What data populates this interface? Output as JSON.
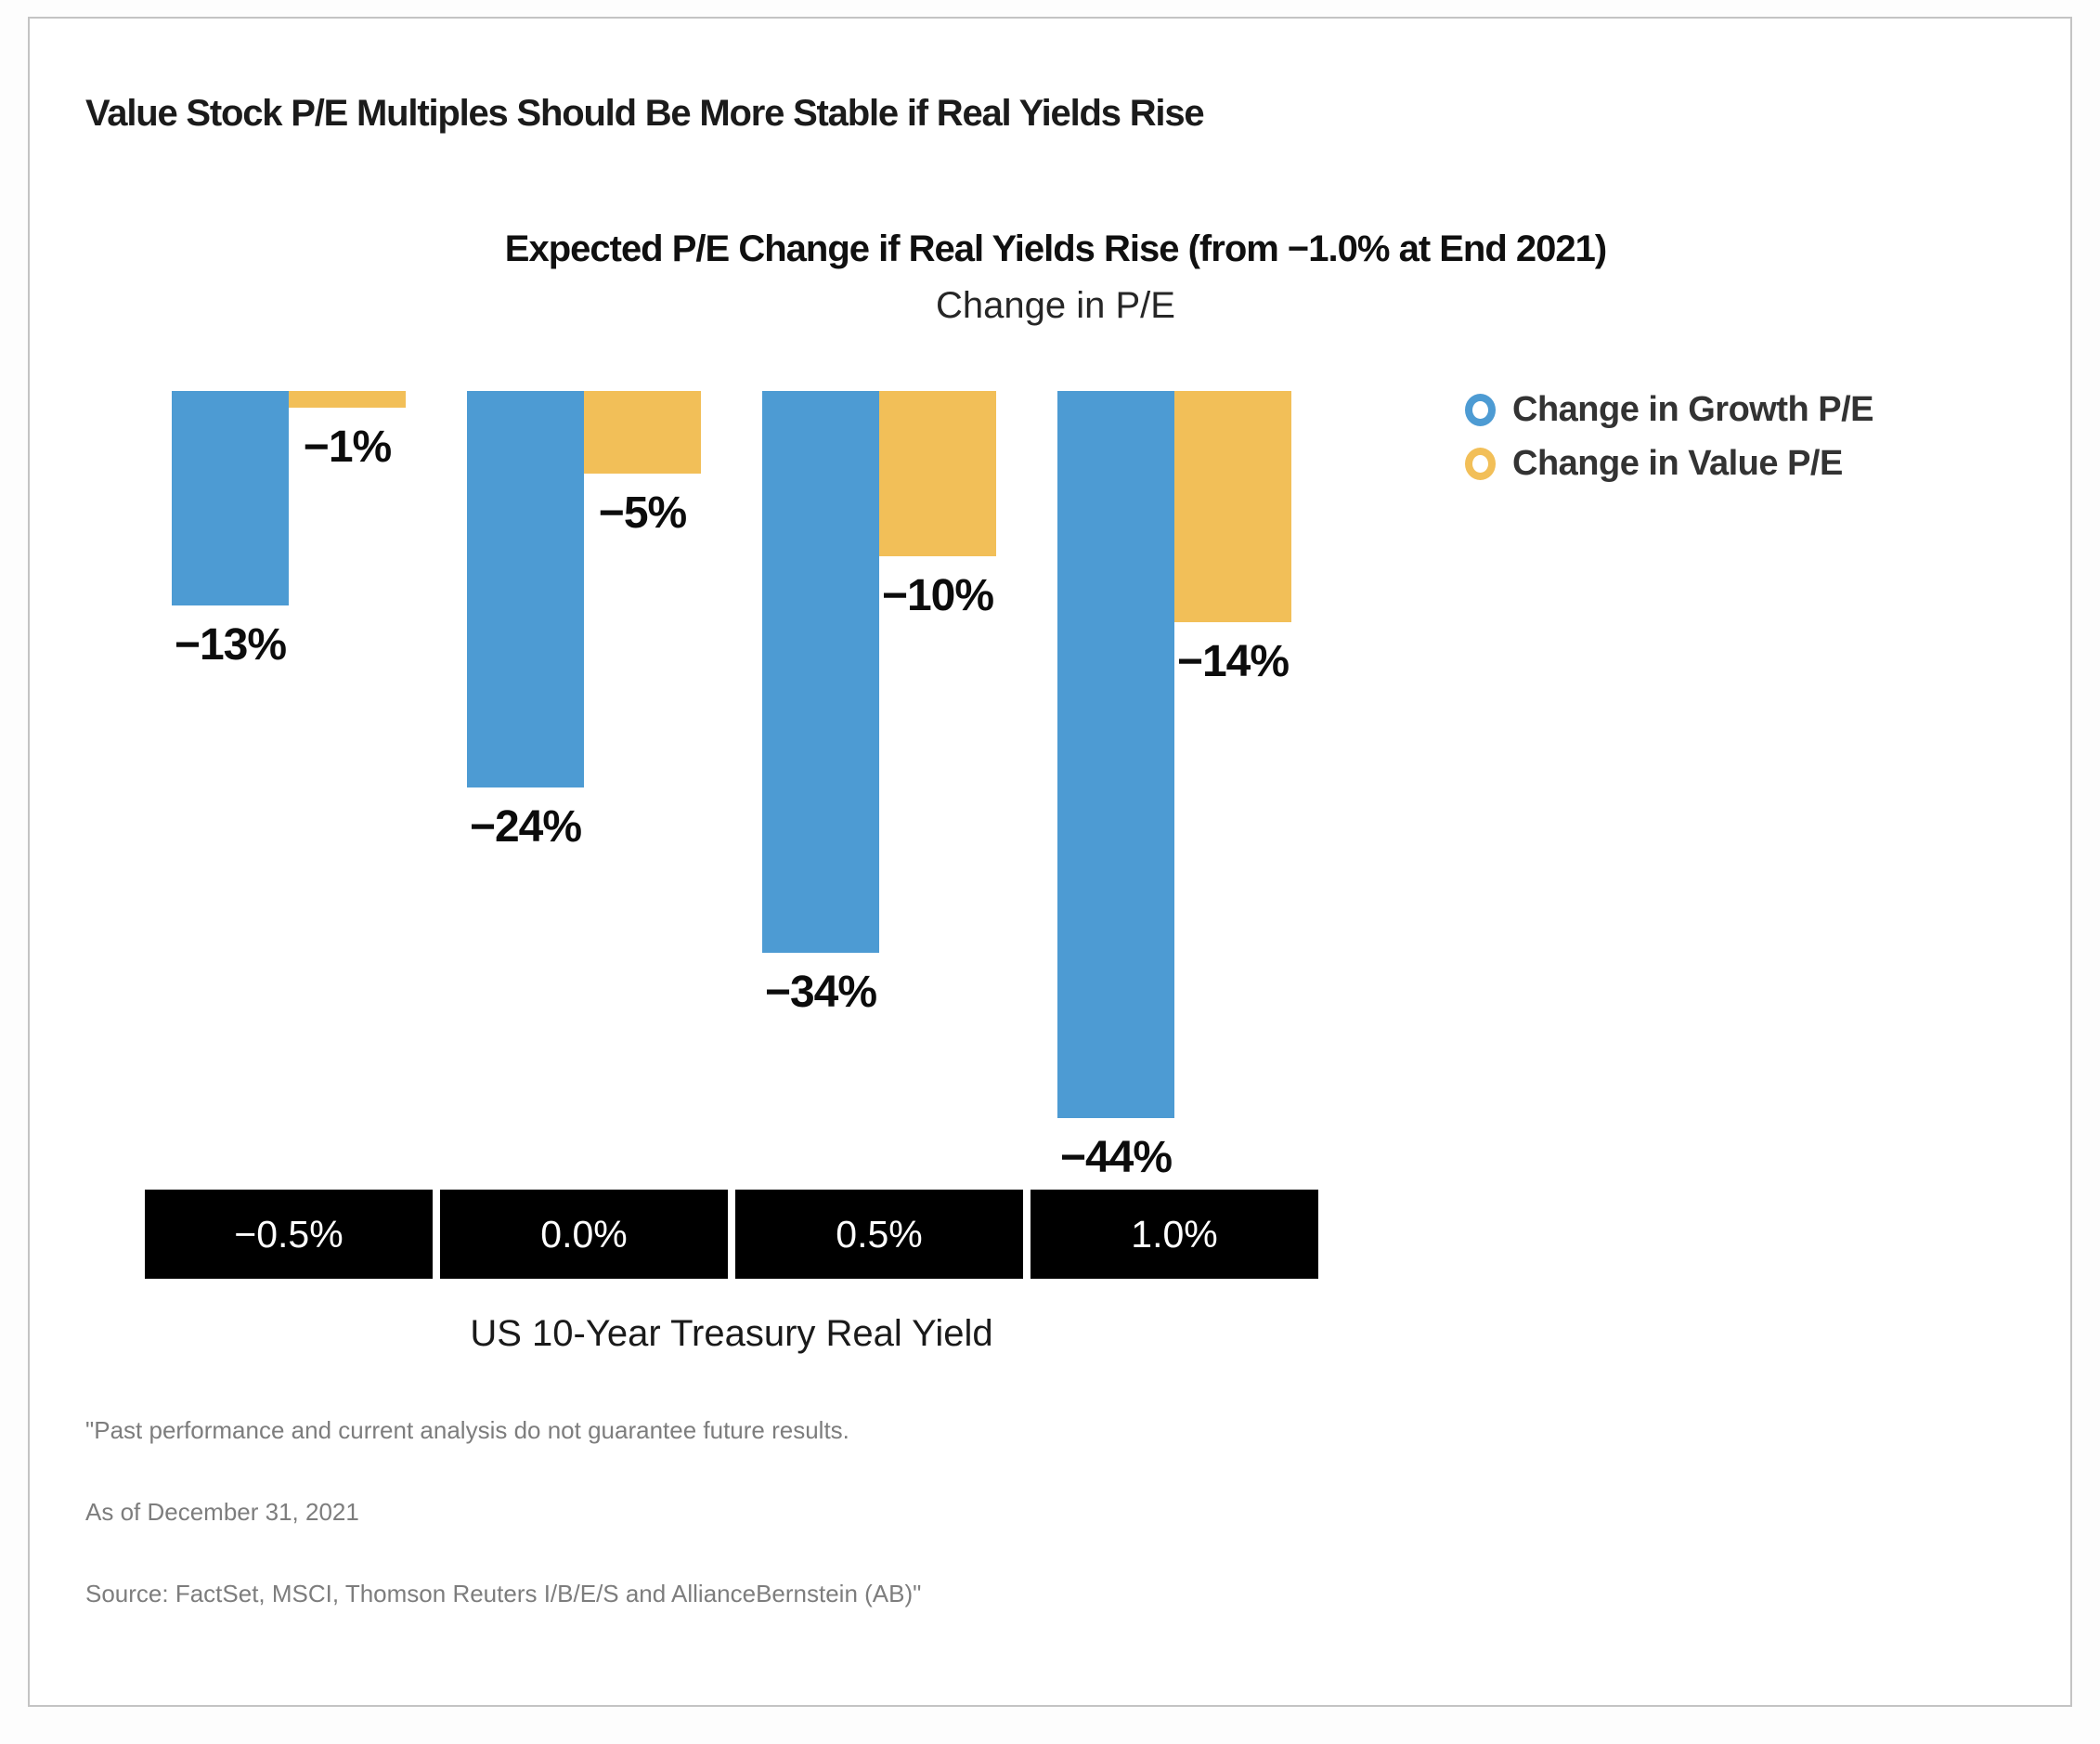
{
  "page_title": "Value Stock P/E Multiples Should Be More Stable if Real Yields Rise",
  "chart": {
    "title": "Expected P/E Change if Real Yields Rise (from −1.0% at End 2021)",
    "subtitle": "Change in P/E",
    "x_axis_title": "US 10-Year Treasury Real Yield"
  },
  "chart_data": {
    "type": "bar",
    "title": "Expected P/E Change if Real Yields Rise (from −1.0% at End 2021)",
    "subtitle": "Change in P/E",
    "xlabel": "US 10-Year Treasury Real Yield",
    "ylabel": "Change in P/E",
    "categories": [
      "−0.5%",
      "0.0%",
      "0.5%",
      "1.0%"
    ],
    "series": [
      {
        "name": "Change in Growth P/E",
        "color": "#4d9bd3",
        "values": [
          -13,
          -24,
          -34,
          -44
        ],
        "data_labels": [
          "−13%",
          "−24%",
          "−34%",
          "−44%"
        ]
      },
      {
        "name": "Change in Value P/E",
        "color": "#f2bf58",
        "values": [
          -1,
          -5,
          -10,
          -14
        ],
        "data_labels": [
          "−1%",
          "−5%",
          "−10%",
          "−14%"
        ]
      }
    ],
    "ylim": [
      -50,
      0
    ],
    "grid": false,
    "legend_position": "right",
    "category_axis_style": "black-boxes-white-text"
  },
  "colors": {
    "growth_blue": "#4d9bd3",
    "value_yellow": "#f2bf58",
    "axis_box_bg": "#000000",
    "axis_box_text": "#ffffff",
    "card_border": "#c4c4c4"
  },
  "footnotes": [
    "\"Past performance and current analysis do not guarantee future results.",
    "As of December 31, 2021",
    "Source: FactSet, MSCI, Thomson Reuters I/B/E/S and AllianceBernstein (AB)\""
  ]
}
